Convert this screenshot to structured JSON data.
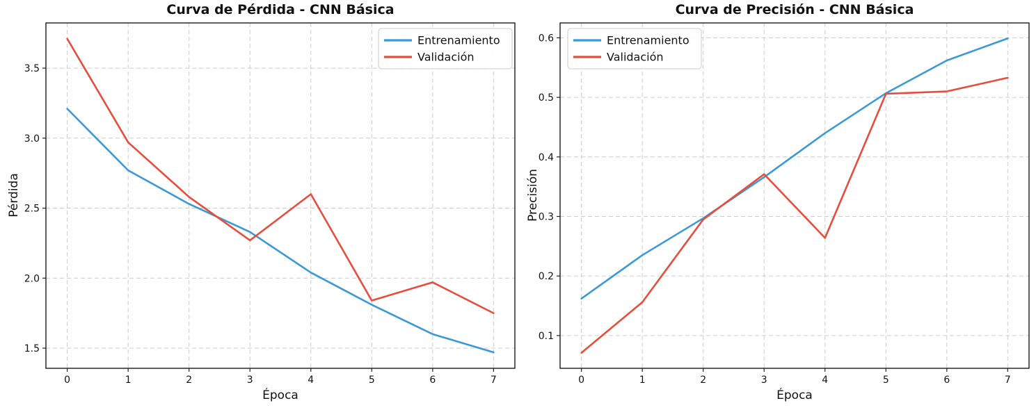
{
  "figure": {
    "background": "#ffffff"
  },
  "chart_data": [
    {
      "type": "line",
      "title": "Curva de Pérdida - CNN Básica",
      "xlabel": "Época",
      "ylabel": "Pérdida",
      "grid": true,
      "legend_position": "upper right",
      "xlim": [
        -0.35,
        7.35
      ],
      "ylim": [
        1.356,
        3.823
      ],
      "x": [
        0,
        1,
        2,
        3,
        4,
        5,
        6,
        7
      ],
      "xticks": [
        0,
        1,
        2,
        3,
        4,
        5,
        6,
        7
      ],
      "xtick_labels": [
        "0",
        "1",
        "2",
        "3",
        "4",
        "5",
        "6",
        "7"
      ],
      "yticks": [
        1.5,
        2.0,
        2.5,
        3.0,
        3.5
      ],
      "ytick_labels": [
        "1.5",
        "2.0",
        "2.5",
        "3.0",
        "3.5"
      ],
      "series": [
        {
          "name": "Entrenamiento",
          "color": "#3b99d8",
          "values": [
            3.21,
            2.77,
            2.53,
            2.33,
            2.04,
            1.81,
            1.6,
            1.47
          ]
        },
        {
          "name": "Validación",
          "color": "#e74c3c",
          "values": [
            3.71,
            2.97,
            2.58,
            2.27,
            2.6,
            1.84,
            1.97,
            1.75
          ]
        }
      ]
    },
    {
      "type": "line",
      "title": "Curva de Precisión - CNN Básica",
      "xlabel": "Época",
      "ylabel": "Precisión",
      "grid": true,
      "legend_position": "upper left",
      "xlim": [
        -0.35,
        7.35
      ],
      "ylim": [
        0.045,
        0.625
      ],
      "x": [
        0,
        1,
        2,
        3,
        4,
        5,
        6,
        7
      ],
      "xticks": [
        0,
        1,
        2,
        3,
        4,
        5,
        6,
        7
      ],
      "xtick_labels": [
        "0",
        "1",
        "2",
        "3",
        "4",
        "5",
        "6",
        "7"
      ],
      "yticks": [
        0.1,
        0.2,
        0.3,
        0.4,
        0.5,
        0.6
      ],
      "ytick_labels": [
        "0.1",
        "0.2",
        "0.3",
        "0.4",
        "0.5",
        "0.6"
      ],
      "series": [
        {
          "name": "Entrenamiento",
          "color": "#3b99d8",
          "values": [
            0.162,
            0.235,
            0.297,
            0.366,
            0.44,
            0.507,
            0.562,
            0.599
          ]
        },
        {
          "name": "Validación",
          "color": "#e74c3c",
          "values": [
            0.071,
            0.156,
            0.295,
            0.371,
            0.264,
            0.506,
            0.51,
            0.533
          ]
        }
      ]
    }
  ]
}
